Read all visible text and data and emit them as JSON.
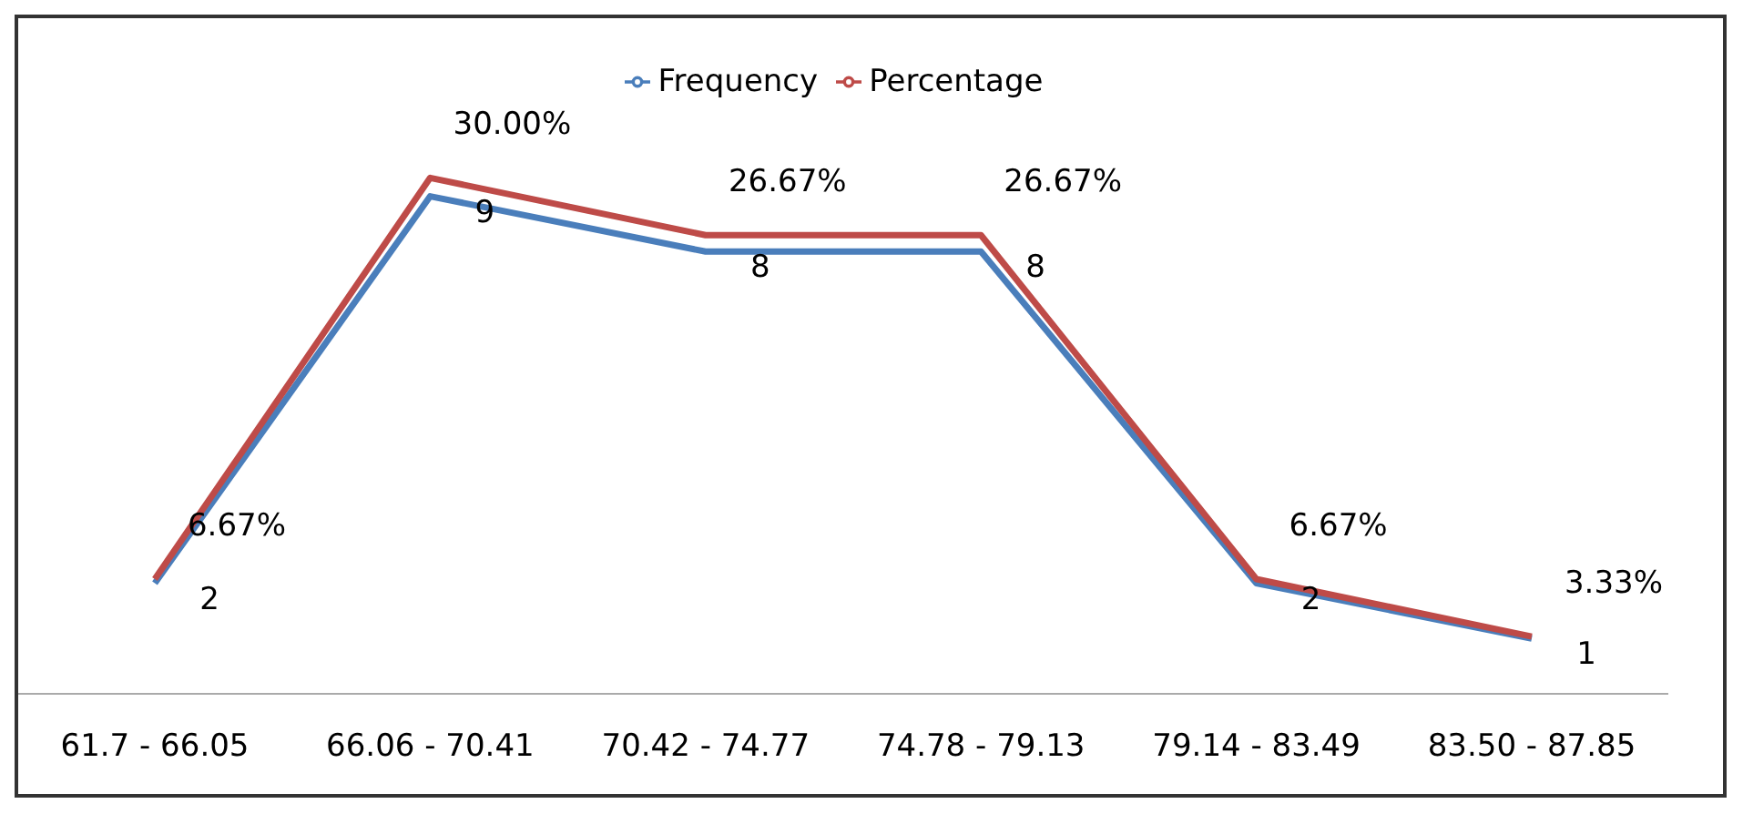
{
  "chart_data": {
    "type": "line",
    "categories": [
      "61.7 - 66.05",
      "66.06 - 70.41",
      "70.42 - 74.77",
      "74.78 - 79.13",
      "79.14 - 83.49",
      "83.50 - 87.85"
    ],
    "series": [
      {
        "name": "Frequency",
        "color": "#4a7ebb",
        "values": [
          2,
          9,
          8,
          8,
          2,
          1
        ]
      },
      {
        "name": "Percentage",
        "color": "#be4b48",
        "axis": "y2",
        "values": [
          6.67,
          30,
          26.67,
          26.67,
          6.67,
          3.33
        ],
        "value_labels": [
          "6.67%",
          "30.00%",
          "26.67%",
          "26.67%",
          "6.67%",
          "3.33%"
        ]
      }
    ],
    "data_labels": true,
    "legend": "top",
    "marker": "none",
    "grid": false,
    "tick_labels": "x"
  }
}
